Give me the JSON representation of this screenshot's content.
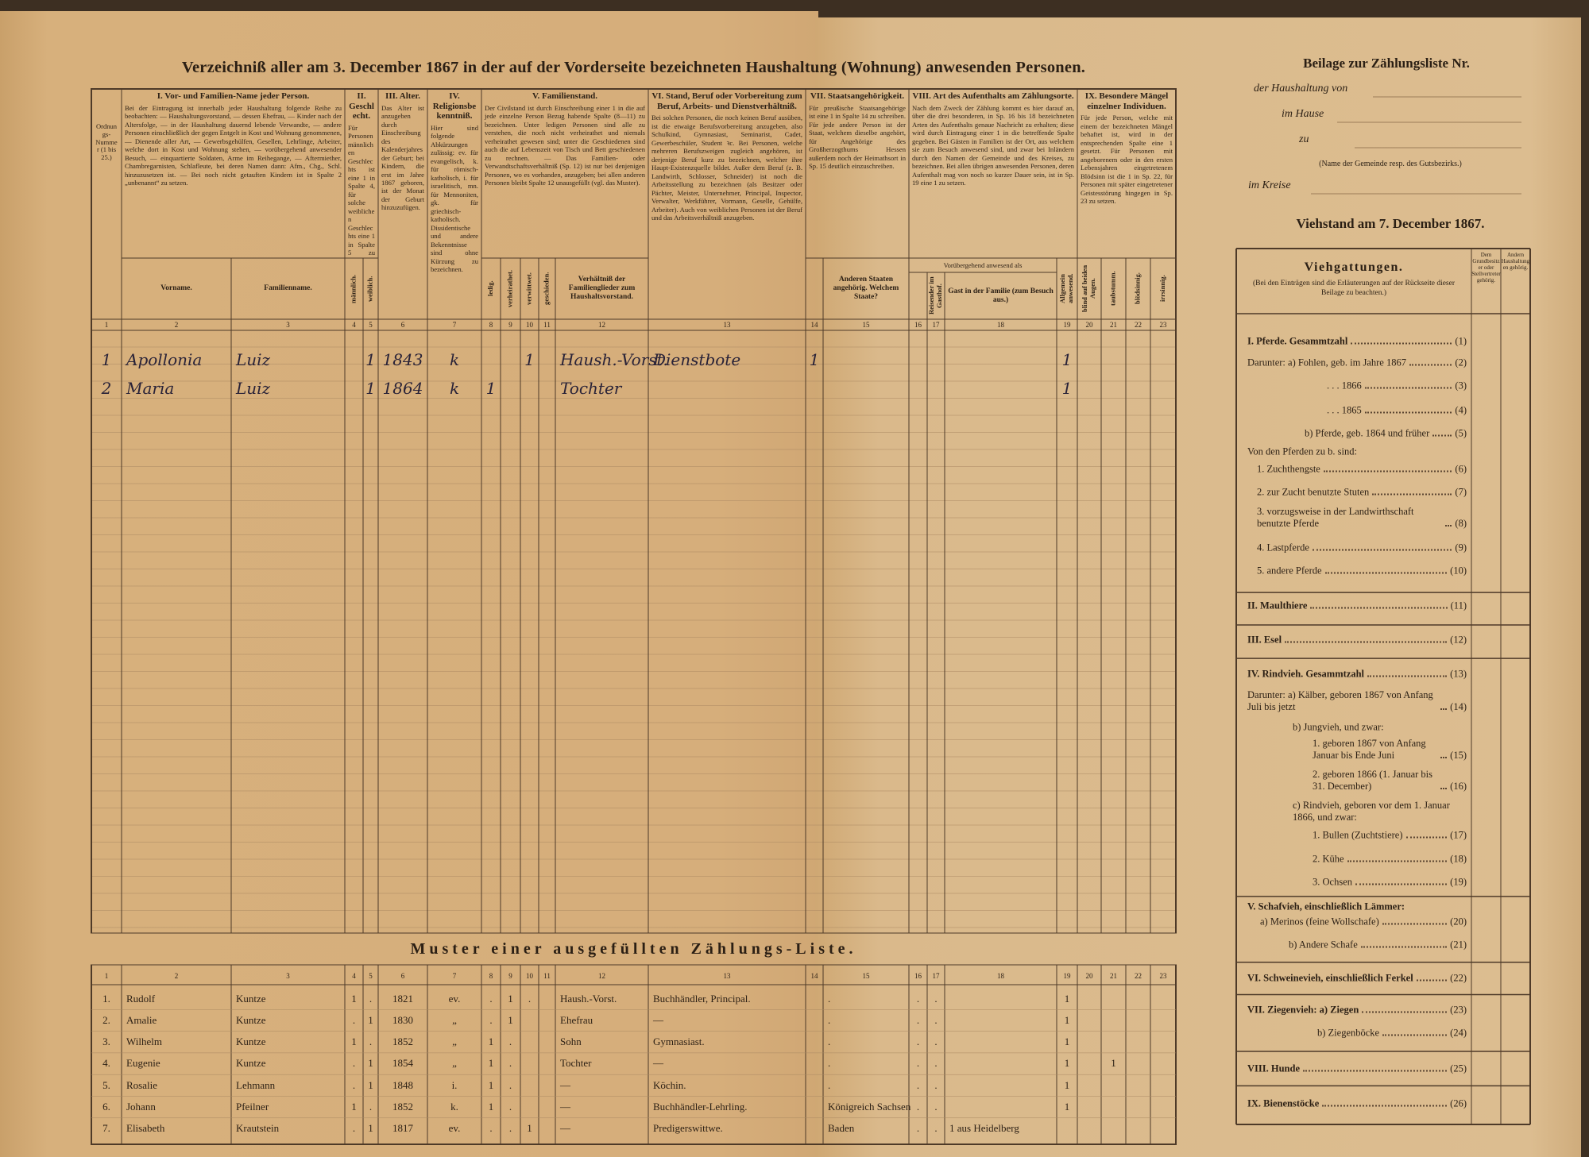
{
  "form": {
    "title": "Verzeichniß aller am 3. December 1867 in der auf der Vorderseite bezeichneten Haushaltung (Wohnung) anwesenden Personen.",
    "groups": [
      {
        "heading": "Ordnungs-Nummer (1 bis 25.)"
      },
      {
        "heading": "I. Vor- und Familien-Name jeder Person.",
        "note": "Bei der Eintragung ist innerhalb jeder Haushaltung folgende Reihe zu beobachten: — Haushaltungsvorstand, — dessen Ehefrau, — Kinder nach der Altersfolge, — in der Haushaltung dauernd lebende Verwandte, — andere Personen einschließlich der gegen Entgelt in Kost und Wohnung genommenen, — Dienende aller Art, — Gewerbsgehülfen, Gesellen, Lehrlinge, Arbeiter, welche dort in Kost und Wohnung stehen, — vorübergehend anwesender Besuch, — einquartierte Soldaten, Arme im Reihegange, — Aftermiether, Chambregarnisten, Schlafleute, bei deren Namen dann: Afm., Chg., Schl. hinzuzusetzen ist. — Bei noch nicht getauften Kindern ist in Spalte 2 „unbenannt“ zu setzen."
      },
      {
        "heading": "II. Geschlecht.",
        "note": "Für Personen männlichen Geschlechts ist eine 1 in Spalte 4, für solche weiblichen Geschlechts eine 1 in Spalte 5 zu setzen."
      },
      {
        "heading": "III. Alter.",
        "note": "Das Alter ist anzugeben durch Einschreibung des Kalenderjahres der Geburt; bei Kindern, die erst im Jahre 1867 geboren, ist der Monat der Geburt hinzuzufügen."
      },
      {
        "heading": "IV. Religionsbekenntniß.",
        "note": "Hier sind folgende Abkürzungen zulässig: ev. für evangelisch, k. für römisch-katholisch, i. für israelitisch, mn. für Mennoniten, gk. für griechisch-katholisch. Dissidentische und andere Bekenntnisse sind ohne Kürzung zu bezeichnen."
      },
      {
        "heading": "V. Familienstand.",
        "note": "Der Civilstand ist durch Einschreibung einer 1 in die auf jede einzelne Person Bezug habende Spalte (8—11) zu bezeichnen. Unter ledigen Personen sind alle zu verstehen, die noch nicht verheirathet und niemals verheirathet gewesen sind; unter die Geschiedenen sind auch die auf Lebenszeit von Tisch und Bett geschiedenen zu rechnen. — Das Familien- oder Verwandtschaftsverhältniß (Sp. 12) ist nur bei denjenigen Personen, wo es vorhanden, anzugeben; bei allen anderen Personen bleibt Spalte 12 unausgefüllt (vgl. das Muster)."
      },
      {
        "heading": "VI. Stand, Beruf oder Vorbereitung zum Beruf, Arbeits- und Dienstverhältniß.",
        "note": "Bei solchen Personen, die noch keinen Beruf ausüben, ist die etwaige Berufsvorbereitung anzugeben, also Schulkind, Gymnasiast, Seminarist, Cadet, Gewerbeschüler, Student ꝛc. Bei Personen, welche mehreren Berufszweigen zugleich angehören, ist derjenige Beruf kurz zu bezeichnen, welcher ihre Haupt-Existenzquelle bildet. Außer dem Beruf (z. B. Landwirth, Schlosser, Schneider) ist noch die Arbeitsstellung zu bezeichnen (als Besitzer oder Pächter, Meister, Unternehmer, Principal, Inspector, Verwalter, Werkführer, Vormann, Geselle, Gehülfe, Arbeiter). Auch von weiblichen Personen ist der Beruf und das Arbeitsverhältniß anzugeben."
      },
      {
        "heading": "VII. Staatsangehörigkeit.",
        "note": "Für preußische Staatsangehörige ist eine 1 in Spalte 14 zu schreiben. Für jede andere Person ist der Staat, welchem dieselbe angehört, für Angehörige des Großherzogthums Hessen außerdem noch der Heimathsort in Sp. 15 deutlich einzuschreiben."
      },
      {
        "heading": "VIII. Art des Aufenthalts am Zählungsorte.",
        "note": "Nach dem Zweck der Zählung kommt es hier darauf an, über die drei besonderen, in Sp. 16 bis 18 bezeichneten Arten des Aufenthalts genaue Nachricht zu erhalten; diese wird durch Eintragung einer 1 in die betreffende Spalte gegeben. Bei Gästen in Familien ist der Ort, aus welchem sie zum Besuch anwesend sind, und zwar bei Inländern durch den Namen der Gemeinde und des Kreises, zu bezeichnen. Bei allen übrigen anwesenden Personen, deren Aufenthalt mag von noch so kurzer Dauer sein, ist in Sp. 19 eine 1 zu setzen."
      },
      {
        "heading": "IX. Besondere Mängel einzelner Individuen.",
        "note": "Für jede Person, welche mit einem der bezeichneten Mängel behaftet ist, wird in der entsprechenden Spalte eine 1 gesetzt. Für Personen mit angeborenem oder in den ersten Lebensjahren eingetretenem Blödsinn ist die 1 in Sp. 22, für Personen mit später eingetretener Geistesstörung hingegen in Sp. 23 zu setzen."
      }
    ],
    "transient_label": "Vorübergehend anwesend als",
    "subheadings": [
      null,
      "Vorname.",
      "Familienname.",
      "männlich.",
      "weiblich.",
      null,
      null,
      "ledig.",
      "verheirathet.",
      "verwittwet.",
      "geschieden.",
      "Verhältniß der Familienglieder zum Haushaltsvorstand.",
      null,
      null,
      "Anderen Staaten angehörig. Welchem Staate?",
      null,
      "Reisender im Gasthof.",
      "Gast in der Familie (zum Besuch aus.)",
      "Allgemein anwesend.",
      "blind auf beiden Augen.",
      "taubstumm.",
      "blödsinnig.",
      "irrsinnig."
    ],
    "column_numbers": [
      1,
      2,
      3,
      4,
      5,
      6,
      7,
      8,
      9,
      10,
      11,
      12,
      13,
      14,
      15,
      16,
      17,
      18,
      19,
      20,
      21,
      22,
      23
    ],
    "entries": [
      [
        "1",
        "Apollonia",
        "Luiz",
        null,
        "1",
        "1843",
        "k",
        null,
        null,
        "1",
        null,
        "Haush.-Vorst.",
        "Dienstbote",
        "1",
        null,
        null,
        null,
        null,
        "1",
        null,
        null,
        null,
        null
      ],
      [
        "2",
        "Maria",
        "Luiz",
        null,
        "1",
        "1864",
        "k",
        "1",
        null,
        null,
        null,
        "Tochter",
        null,
        null,
        null,
        null,
        null,
        null,
        "1",
        null,
        null,
        null,
        null
      ]
    ]
  },
  "sample": {
    "title": "Muster einer ausgefüllten Zählungs-Liste.",
    "column_numbers": [
      1,
      2,
      3,
      4,
      5,
      6,
      7,
      8,
      9,
      10,
      11,
      12,
      13,
      14,
      15,
      16,
      17,
      18,
      19,
      20,
      21,
      22,
      23
    ],
    "rows": [
      [
        "1.",
        "Rudolf",
        "Kuntze",
        "1",
        ".",
        "1821",
        "ev.",
        ".",
        "1",
        ".",
        null,
        "Haush.-Vorst.",
        "Buchhändler, Principal.",
        null,
        ".",
        ".",
        ".",
        null,
        "1",
        null,
        null,
        null,
        null
      ],
      [
        "2.",
        "Amalie",
        "Kuntze",
        ".",
        "1",
        "1830",
        "„",
        ".",
        "1",
        null,
        null,
        "Ehefrau",
        "—",
        null,
        ".",
        ".",
        ".",
        null,
        "1",
        null,
        null,
        null,
        null
      ],
      [
        "3.",
        "Wilhelm",
        "Kuntze",
        "1",
        ".",
        "1852",
        "„",
        "1",
        ".",
        null,
        null,
        "Sohn",
        "Gymnasiast.",
        null,
        ".",
        ".",
        ".",
        null,
        "1",
        null,
        null,
        null,
        null
      ],
      [
        "4.",
        "Eugenie",
        "Kuntze",
        ".",
        "1",
        "1854",
        "„",
        "1",
        ".",
        null,
        null,
        "Tochter",
        "—",
        null,
        ".",
        ".",
        ".",
        null,
        "1",
        null,
        "1",
        null,
        null
      ],
      [
        "5.",
        "Rosalie",
        "Lehmann",
        ".",
        "1",
        "1848",
        "i.",
        "1",
        ".",
        null,
        null,
        "—",
        "Köchin.",
        null,
        ".",
        ".",
        ".",
        null,
        "1",
        null,
        null,
        null,
        null
      ],
      [
        "6.",
        "Johann",
        "Pfeilner",
        "1",
        ".",
        "1852",
        "k.",
        "1",
        ".",
        null,
        null,
        "—",
        "Buchhändler-Lehrling.",
        null,
        "Königreich Sachsen",
        ".",
        ".",
        null,
        "1",
        null,
        null,
        null,
        null
      ],
      [
        "7.",
        "Elisabeth",
        "Krautstein",
        ".",
        "1",
        "1817",
        "ev.",
        ".",
        ".",
        "1",
        null,
        "—",
        "Predigerswittwe.",
        null,
        "Baden",
        ".",
        ".",
        "1 aus Heidelberg",
        null,
        null,
        null,
        null,
        null
      ]
    ]
  },
  "supplement": {
    "title": "Beilage zur Zählungsliste Nr.",
    "fields": [
      "der Haushaltung von",
      "im Hause",
      "zu"
    ],
    "place_note": "(Name der Gemeinde resp. des Gutsbezirks.)",
    "district": "im Kreise",
    "livestock_title": "Viehstand am 7. December 1867.",
    "table": {
      "heading": "Viehgattungen.",
      "note": "(Bei den Einträgen sind die Erläuterungen auf der Rückseite dieser Beilage zu beachten.)",
      "col_owner": "Dem Grundbesitzer oder Stellvertreter gehörig.",
      "col_other": "Andern Haushaltungen gehörig.",
      "items": [
        {
          "label": "I. Pferde. Gesammtzahl",
          "number": "(1)"
        },
        {
          "label": "Darunter: a) Fohlen, geb. im Jahre 1867",
          "number": "(2)"
        },
        {
          "label": ". . . 1866",
          "number": "(3)"
        },
        {
          "label": ". . . 1865",
          "number": "(4)"
        },
        {
          "label": "b) Pferde, geb. 1864 und früher",
          "number": "(5)"
        },
        {
          "label": "Von den Pferden zu b. sind:"
        },
        {
          "label": "1. Zuchthengste",
          "number": "(6)"
        },
        {
          "label": "2. zur Zucht benutzte Stuten",
          "number": "(7)"
        },
        {
          "label": "3. vorzugsweise in der Landwirthschaft benutzte Pferde",
          "number": "(8)"
        },
        {
          "label": "4. Lastpferde",
          "number": "(9)"
        },
        {
          "label": "5. andere Pferde",
          "number": "(10)"
        },
        {
          "label": "II. Maulthiere",
          "number": "(11)"
        },
        {
          "label": "III. Esel",
          "number": "(12)"
        },
        {
          "label": "IV. Rindvieh. Gesammtzahl",
          "number": "(13)"
        },
        {
          "label": "Darunter: a) Kälber, geboren 1867 von Anfang Juli bis jetzt",
          "number": "(14)"
        },
        {
          "label": "b) Jungvieh, und zwar:"
        },
        {
          "label": "1. geboren 1867 von Anfang Januar bis Ende Juni",
          "number": "(15)"
        },
        {
          "label": "2. geboren 1866 (1. Januar bis 31. December)",
          "number": "(16)"
        },
        {
          "label": "c) Rindvieh, geboren vor dem 1. Januar 1866, und zwar:"
        },
        {
          "label": "1. Bullen (Zuchtstiere)",
          "number": "(17)"
        },
        {
          "label": "2. Kühe",
          "number": "(18)"
        },
        {
          "label": "3. Ochsen",
          "number": "(19)"
        },
        {
          "label": "V. Schafvieh, einschließlich Lämmer:"
        },
        {
          "label": "a) Merinos (feine Wollschafe)",
          "number": "(20)"
        },
        {
          "label": "b) Andere Schafe",
          "number": "(21)"
        },
        {
          "label": "VI. Schweinevieh, einschließlich Ferkel",
          "number": "(22)"
        },
        {
          "label": "VII. Ziegenvieh: a) Ziegen",
          "number": "(23)"
        },
        {
          "label": "b) Ziegenböcke",
          "number": "(24)"
        },
        {
          "label": "VIII. Hunde",
          "number": "(25)"
        },
        {
          "label": "IX. Bienenstöcke",
          "number": "(26)"
        }
      ]
    }
  }
}
